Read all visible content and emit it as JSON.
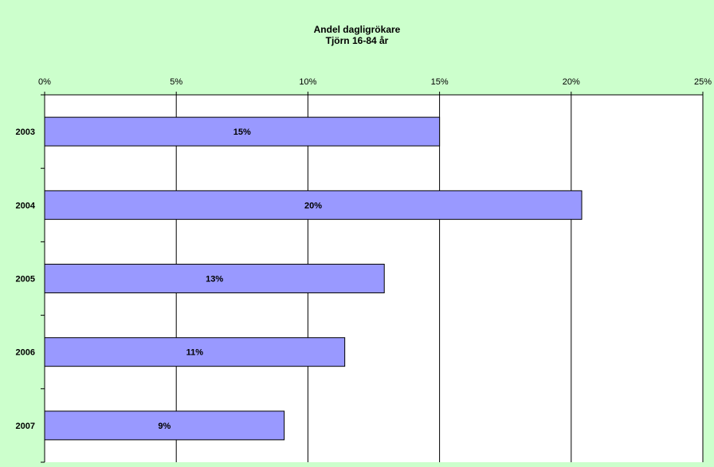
{
  "chart_data": {
    "type": "bar",
    "orientation": "horizontal",
    "title": "Andel dagligrökare",
    "subtitle": "Tjörn 16-84 år",
    "categories": [
      "2003",
      "2004",
      "2005",
      "2006",
      "2007"
    ],
    "values": [
      0.15,
      0.204,
      0.129,
      0.114,
      0.091
    ],
    "data_labels": [
      "15%",
      "20%",
      "13%",
      "11%",
      "9%"
    ],
    "x_ticks": [
      0,
      0.05,
      0.1,
      0.15,
      0.2,
      0.25
    ],
    "x_tick_labels": [
      "0%",
      "5%",
      "10%",
      "15%",
      "20%",
      "25%"
    ],
    "xlim": [
      0,
      0.25
    ],
    "x_axis_position": "top",
    "grid": true,
    "colors": {
      "background": "#ccffcc",
      "plot_area": "#ffffff",
      "bar_fill": "#9999ff",
      "bar_stroke": "#000000",
      "gridline": "#000000"
    }
  }
}
